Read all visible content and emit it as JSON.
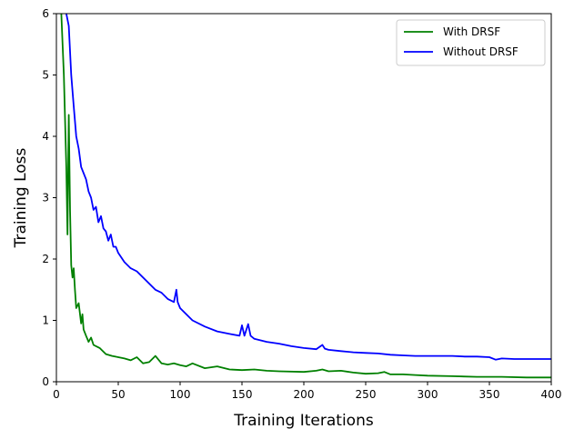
{
  "chart_data": {
    "type": "line",
    "title": "",
    "xlabel": "Training Iterations",
    "ylabel": "Training Loss",
    "xlim": [
      0,
      400
    ],
    "ylim": [
      0,
      6
    ],
    "xticks": [
      0,
      50,
      100,
      150,
      200,
      250,
      300,
      350,
      400
    ],
    "yticks": [
      0,
      1,
      2,
      3,
      4,
      5,
      6
    ],
    "grid": false,
    "legend": "top-right",
    "series": [
      {
        "name": "With DRSF",
        "color": "#008000",
        "x": [
          4,
          6,
          8,
          9,
          10,
          11,
          12,
          13,
          14,
          15,
          16,
          18,
          20,
          21,
          22,
          24,
          26,
          28,
          30,
          35,
          40,
          45,
          50,
          55,
          60,
          65,
          70,
          75,
          80,
          85,
          90,
          95,
          100,
          105,
          110,
          120,
          130,
          140,
          150,
          160,
          170,
          180,
          200,
          210,
          215,
          220,
          230,
          240,
          250,
          260,
          265,
          270,
          280,
          290,
          300,
          320,
          340,
          360,
          380,
          400
        ],
        "y": [
          6.0,
          5.0,
          3.5,
          2.4,
          4.35,
          2.8,
          1.9,
          1.7,
          1.85,
          1.5,
          1.2,
          1.28,
          0.95,
          1.1,
          0.85,
          0.75,
          0.65,
          0.72,
          0.6,
          0.55,
          0.45,
          0.42,
          0.4,
          0.38,
          0.35,
          0.4,
          0.3,
          0.32,
          0.42,
          0.3,
          0.28,
          0.3,
          0.27,
          0.25,
          0.3,
          0.22,
          0.25,
          0.2,
          0.19,
          0.2,
          0.18,
          0.17,
          0.16,
          0.18,
          0.2,
          0.17,
          0.18,
          0.15,
          0.13,
          0.14,
          0.16,
          0.12,
          0.12,
          0.11,
          0.1,
          0.09,
          0.08,
          0.08,
          0.07,
          0.07
        ]
      },
      {
        "name": "Without DRSF",
        "color": "#0000ff",
        "x": [
          8,
          10,
          12,
          14,
          16,
          18,
          20,
          22,
          24,
          26,
          28,
          30,
          32,
          34,
          36,
          38,
          40,
          42,
          44,
          46,
          48,
          50,
          55,
          60,
          65,
          70,
          75,
          80,
          85,
          90,
          95,
          97,
          98,
          100,
          105,
          110,
          120,
          130,
          140,
          148,
          150,
          152,
          155,
          157,
          160,
          170,
          180,
          190,
          200,
          210,
          215,
          217,
          220,
          230,
          240,
          250,
          260,
          270,
          280,
          290,
          300,
          310,
          320,
          330,
          340,
          350,
          355,
          360,
          370,
          380,
          390,
          400
        ],
        "y": [
          6.0,
          5.8,
          5.0,
          4.5,
          4.0,
          3.8,
          3.5,
          3.4,
          3.3,
          3.1,
          3.0,
          2.8,
          2.85,
          2.6,
          2.7,
          2.5,
          2.45,
          2.3,
          2.4,
          2.2,
          2.2,
          2.1,
          1.95,
          1.85,
          1.8,
          1.7,
          1.6,
          1.5,
          1.45,
          1.35,
          1.3,
          1.5,
          1.3,
          1.2,
          1.1,
          1.0,
          0.9,
          0.82,
          0.78,
          0.75,
          0.92,
          0.75,
          0.94,
          0.75,
          0.7,
          0.65,
          0.62,
          0.58,
          0.55,
          0.53,
          0.6,
          0.54,
          0.52,
          0.5,
          0.48,
          0.47,
          0.46,
          0.44,
          0.43,
          0.42,
          0.42,
          0.42,
          0.42,
          0.41,
          0.41,
          0.4,
          0.36,
          0.38,
          0.37,
          0.37,
          0.37,
          0.37
        ]
      }
    ]
  }
}
